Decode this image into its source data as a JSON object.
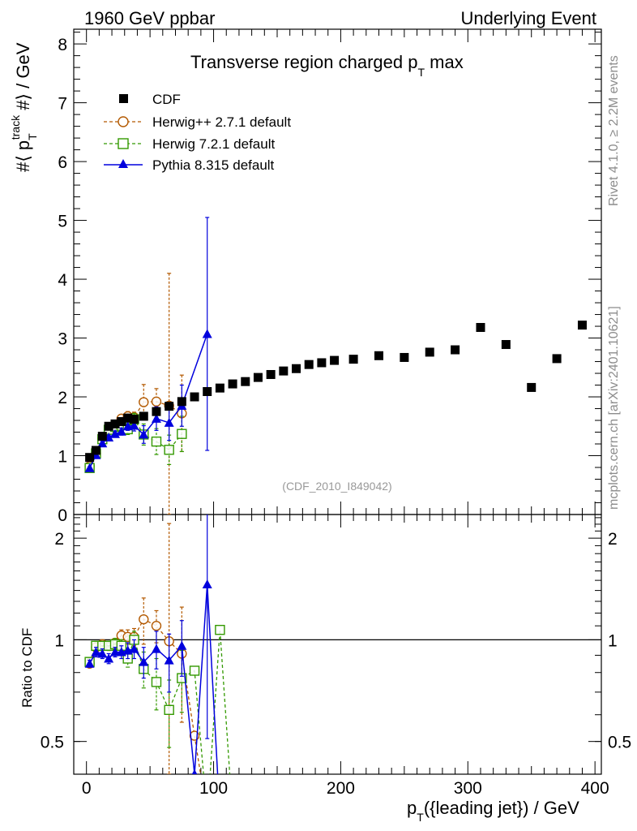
{
  "header": {
    "left": "1960 GeV ppbar",
    "right": "Underlying Event"
  },
  "title": {
    "main": "Transverse region charged p",
    "sub": "T",
    "tail": " max"
  },
  "ylabel": {
    "prefix": "#⟨ p",
    "sub": "T",
    "sup": "track",
    "suffix": " #⟩ / GeV"
  },
  "xlabel": {
    "prefix": "p",
    "sub": "T",
    "suffix": "({leading jet}) / GeV"
  },
  "ratio_label": "Ratio to CDF",
  "side_text": {
    "rivet": "Rivet 4.1.0, ≥ 2.2M events",
    "mcplots": "mcplots.cern.ch [arXiv:2401.10621]"
  },
  "analysis_id": "(CDF_2010_I849042)",
  "legend": [
    {
      "label": "CDF"
    },
    {
      "label": "Herwig++ 2.7.1 default"
    },
    {
      "label": "Herwig 7.2.1 default"
    },
    {
      "label": "Pythia 8.315 default"
    }
  ],
  "colors": {
    "cdf": "#000000",
    "herwigpp": "#b35900",
    "herwig7": "#339900",
    "pythia": "#0000dd"
  },
  "chart_data": [
    {
      "type": "scatter",
      "panel": "main",
      "xlim": [
        -10,
        405
      ],
      "ylim": [
        0,
        8.25
      ],
      "xticks": [
        0,
        100,
        200,
        300,
        400
      ],
      "yticks": [
        0,
        1,
        2,
        3,
        4,
        5,
        6,
        7,
        8
      ],
      "ytick_labels": [
        "0",
        "1",
        "2",
        "3",
        "4",
        "5",
        "6",
        "7",
        "8"
      ],
      "series": [
        {
          "name": "CDF",
          "key": "cdf",
          "marker": "square-filled",
          "x": [
            2.5,
            7.5,
            12.5,
            17.5,
            22.5,
            27.5,
            32.5,
            37.5,
            45,
            55,
            65,
            75,
            85,
            95,
            105,
            115,
            125,
            135,
            145,
            155,
            165,
            175,
            185,
            195,
            210,
            230,
            250,
            270,
            290,
            310,
            330,
            350,
            370,
            390
          ],
          "y": [
            0.97,
            1.09,
            1.33,
            1.5,
            1.54,
            1.58,
            1.64,
            1.62,
            1.67,
            1.75,
            1.84,
            1.92,
            2.0,
            2.09,
            2.15,
            2.22,
            2.26,
            2.33,
            2.38,
            2.44,
            2.48,
            2.55,
            2.58,
            2.62,
            2.64,
            2.7,
            2.67,
            2.76,
            2.8,
            3.18,
            2.89,
            2.16,
            2.65,
            3.22
          ]
        },
        {
          "name": "Herwig++ 2.7.1 default",
          "key": "herwigpp",
          "marker": "circle-open",
          "line": "dashed",
          "x": [
            2.5,
            7.5,
            12.5,
            17.5,
            22.5,
            27.5,
            32.5,
            37.5,
            45,
            55,
            65,
            75
          ],
          "y": [
            0.82,
            1.04,
            1.29,
            1.44,
            1.51,
            1.63,
            1.67,
            1.65,
            1.91,
            1.92,
            1.85,
            1.72
          ],
          "err": [
            0.02,
            0.03,
            0.04,
            0.05,
            0.05,
            0.06,
            0.08,
            0.09,
            0.3,
            0.22,
            2.25,
            0.65
          ]
        },
        {
          "name": "Herwig 7.2.1 default",
          "key": "herwig7",
          "marker": "square-open",
          "line": "dashed",
          "x": [
            2.5,
            7.5,
            12.5,
            17.5,
            22.5,
            27.5,
            32.5,
            37.5,
            45,
            55,
            65,
            75
          ],
          "y": [
            0.79,
            1.04,
            1.28,
            1.44,
            1.49,
            1.51,
            1.45,
            1.62,
            1.36,
            1.24,
            1.1,
            1.37
          ],
          "err": [
            0.02,
            0.03,
            0.04,
            0.05,
            0.06,
            0.07,
            0.09,
            0.1,
            0.18,
            0.22,
            0.25,
            0.3
          ]
        },
        {
          "name": "Pythia 8.315 default",
          "key": "pythia",
          "marker": "triangle-filled",
          "line": "solid",
          "x": [
            2.5,
            7.5,
            12.5,
            17.5,
            22.5,
            27.5,
            32.5,
            37.5,
            45,
            55,
            65,
            75,
            95
          ],
          "y": [
            0.79,
            1.01,
            1.21,
            1.31,
            1.37,
            1.41,
            1.5,
            1.51,
            1.36,
            1.63,
            1.56,
            1.85,
            3.07
          ],
          "err": [
            0.02,
            0.03,
            0.04,
            0.04,
            0.05,
            0.06,
            0.07,
            0.09,
            0.15,
            0.2,
            0.3,
            0.35,
            1.98
          ]
        }
      ]
    },
    {
      "type": "line",
      "panel": "ratio",
      "xlim": [
        -10,
        405
      ],
      "ylim": [
        0.4,
        2.35
      ],
      "ylog": true,
      "yticks": [
        0.5,
        1,
        2
      ],
      "ytick_labels": [
        "0.5",
        "1",
        "2"
      ],
      "reference": 1,
      "series": [
        {
          "name": "Herwig++ 2.7.1 default",
          "key": "herwigpp",
          "marker": "circle-open",
          "line": "dashed",
          "x": [
            2.5,
            7.5,
            12.5,
            17.5,
            22.5,
            27.5,
            32.5,
            37.5,
            45,
            55,
            65,
            75,
            85,
            95
          ],
          "y": [
            0.85,
            0.95,
            0.97,
            0.96,
            0.98,
            1.03,
            1.02,
            1.02,
            1.15,
            1.1,
            0.99,
            0.91,
            0.52,
            0.3
          ],
          "err": [
            0.02,
            0.03,
            0.03,
            0.03,
            0.03,
            0.04,
            0.05,
            0.06,
            0.18,
            0.12,
            1.22,
            0.34,
            0.0,
            0.0
          ]
        },
        {
          "name": "Herwig 7.2.1 default",
          "key": "herwig7",
          "marker": "square-open",
          "line": "dashed",
          "x": [
            2.5,
            7.5,
            12.5,
            17.5,
            22.5,
            27.5,
            32.5,
            37.5,
            45,
            55,
            65,
            75,
            85,
            95,
            105,
            115
          ],
          "y": [
            0.86,
            0.96,
            0.96,
            0.96,
            0.97,
            0.96,
            0.88,
            1.0,
            0.82,
            0.75,
            0.62,
            0.77,
            0.81,
            0.3,
            1.07,
            0.3
          ],
          "err": [
            0.02,
            0.03,
            0.03,
            0.03,
            0.04,
            0.04,
            0.05,
            0.06,
            0.1,
            0.13,
            0.14,
            0.16,
            0.0,
            0.0,
            0.0,
            0.0
          ]
        },
        {
          "name": "Pythia 8.315 default",
          "key": "pythia",
          "marker": "triangle-filled",
          "line": "solid",
          "x": [
            2.5,
            7.5,
            12.5,
            17.5,
            22.5,
            27.5,
            32.5,
            37.5,
            45,
            55,
            65,
            75,
            85,
            95,
            105
          ],
          "y": [
            0.85,
            0.92,
            0.91,
            0.88,
            0.92,
            0.92,
            0.93,
            0.94,
            0.86,
            0.94,
            0.87,
            0.96,
            0.4,
            1.46,
            0.3
          ],
          "err": [
            0.02,
            0.03,
            0.03,
            0.03,
            0.03,
            0.04,
            0.05,
            0.06,
            0.09,
            0.12,
            0.17,
            0.18,
            0.0,
            0.95,
            0.0
          ]
        }
      ]
    }
  ]
}
